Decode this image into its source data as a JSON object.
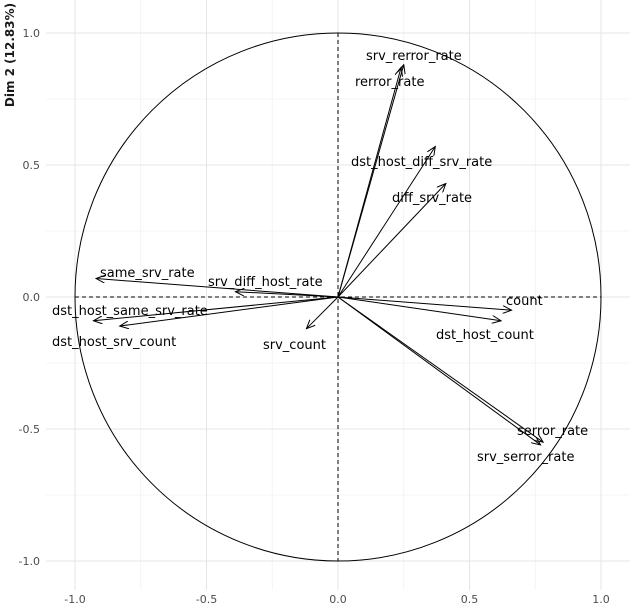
{
  "chart_data": {
    "type": "scatter",
    "subtype": "pca-variable-correlation-circle",
    "title": "",
    "xlabel": "",
    "ylabel": "Dim 2 (12.83%)",
    "xlim": [
      -1.05,
      1.08
    ],
    "ylim": [
      -1.05,
      1.03
    ],
    "xticks": [
      -1.0,
      -0.5,
      0.0,
      0.5,
      1.0
    ],
    "xtick_labels": [
      "-1.0",
      "-0.5",
      "0.0",
      "0.5",
      "1.0"
    ],
    "yticks": [
      -1.0,
      -0.5,
      0.0,
      0.5,
      1.0
    ],
    "ytick_labels": [
      "-1.0",
      "-0.5",
      "0.0",
      "0.5",
      "1.0"
    ],
    "grid": true,
    "unit_circle": true,
    "reference_lines": [
      "x=0",
      "y=0"
    ],
    "variables": [
      {
        "name": "srv_rerror_rate",
        "x": 0.25,
        "y": 0.88
      },
      {
        "name": "rerror_rate",
        "x": 0.24,
        "y": 0.87
      },
      {
        "name": "dst_host_diff_srv_rate",
        "x": 0.37,
        "y": 0.57
      },
      {
        "name": "diff_srv_rate",
        "x": 0.41,
        "y": 0.43
      },
      {
        "name": "same_srv_rate",
        "x": -0.92,
        "y": 0.07
      },
      {
        "name": "srv_diff_host_rate",
        "x": -0.39,
        "y": 0.02
      },
      {
        "name": "count",
        "x": 0.66,
        "y": -0.05
      },
      {
        "name": "dst_host_count",
        "x": 0.62,
        "y": -0.09
      },
      {
        "name": "dst_host_same_srv_rate",
        "x": -0.93,
        "y": -0.09
      },
      {
        "name": "dst_host_srv_count",
        "x": -0.83,
        "y": -0.11
      },
      {
        "name": "srv_count",
        "x": -0.12,
        "y": -0.12
      },
      {
        "name": "serror_rate",
        "x": 0.78,
        "y": -0.55
      },
      {
        "name": "srv_serror_rate",
        "x": 0.77,
        "y": -0.56
      }
    ]
  }
}
